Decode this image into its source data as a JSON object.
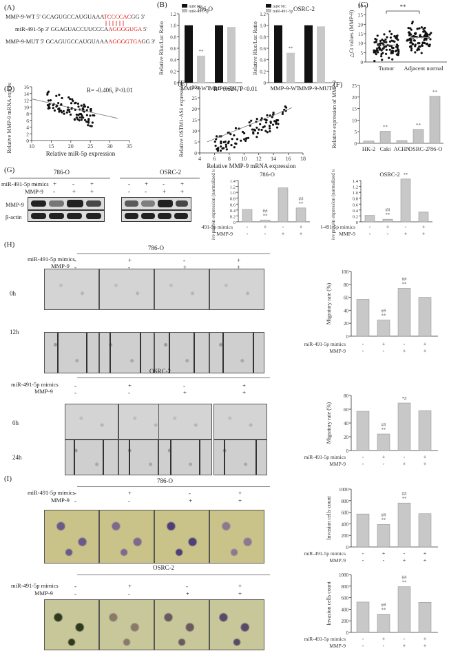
{
  "panels": {
    "A": "(A)",
    "B": "(B)",
    "C": "(C)",
    "D": "(D)",
    "E": "(E)",
    "F": "(F)",
    "G": "(G)",
    "H": "(H)",
    "I": "(I)"
  },
  "A": {
    "wt_label": "MMP-9-WT 5' GCAGUGCCAUGUAAA",
    "wt_red": "TCCCCAC",
    "wt_end": "GG 3'",
    "mir_label": "miR-491-5p 3' GGAGUACCUUCCCA",
    "mir_red": "AGGGGUGA",
    "mir_end": " 5'",
    "mut_label": "MMP-9-MUT 5' GCAGUGCCAUGUAAA",
    "mut_red": "AGGGGTGA",
    "mut_end": "GG 3'"
  },
  "B": {
    "ylabel": "Relative Rluc/Luc Ratio",
    "legend": [
      "miR NC",
      "miR-491-5p"
    ],
    "charts": [
      {
        "title": "786-O",
        "categories": [
          "MMP-9-WT",
          "MMP-9-MUT"
        ],
        "nc": [
          1.0,
          1.0
        ],
        "mir": [
          0.47,
          0.97
        ],
        "sig": [
          "**",
          ""
        ]
      },
      {
        "title": "OSRC-2",
        "categories": [
          "MMP-9-WT",
          "MMP-9-MUT"
        ],
        "nc": [
          1.0,
          1.0
        ],
        "mir": [
          0.52,
          0.98
        ],
        "sig": [
          "**",
          ""
        ]
      }
    ],
    "ticks": [
      "0",
      "0.2",
      "0.4",
      "0.6",
      "0.8",
      "1.0",
      "1.2"
    ]
  },
  "C": {
    "ylabel": "△Ct values (MMP-9)",
    "categories": [
      "Tumor",
      "Adjacent normal"
    ],
    "sig": "**",
    "ticks": [
      "0",
      "5",
      "10",
      "15",
      "20",
      "25",
      "30"
    ]
  },
  "D": {
    "xlabel": "Relative miR-5p expression",
    "ylabel": "Relative MMP-9 mRNA expression",
    "stat": "R= -0.406, P<0.01",
    "xticks": [
      "10",
      "15",
      "20",
      "25",
      "30",
      "35"
    ],
    "yticks": [
      "0",
      "2",
      "4",
      "6",
      "8",
      "10",
      "12",
      "14",
      "16"
    ]
  },
  "E": {
    "xlabel": "Relative MMP-9 mRNA expression",
    "ylabel": "Relative OSTM1-AS1 expression",
    "stat": "R= 0.624, P<0.01",
    "xticks": [
      "4",
      "6",
      "8",
      "10",
      "12",
      "14",
      "16",
      "18"
    ],
    "yticks": [
      "0",
      "5",
      "10",
      "15",
      "20",
      "25",
      "30"
    ]
  },
  "F": {
    "ylabel": "Relative expression of MMP-9",
    "categories": [
      "HK-2",
      "Caki",
      "ACHN",
      "OSRC-2",
      "786-O"
    ],
    "values": [
      1,
      5.2,
      1.2,
      6,
      20.3
    ],
    "sig": [
      "",
      "**",
      "",
      "**",
      "**"
    ],
    "ticks": [
      "0",
      "5",
      "10",
      "15",
      "20",
      "25"
    ]
  },
  "G": {
    "cell_a": "786-O",
    "cell_b": "OSRC-2",
    "row1": "miR-491-5p mimics",
    "row2": "MMP-9",
    "blot1": "MMP-9",
    "blot2": "β-actin",
    "mimic_signs": [
      "-",
      "+",
      "-",
      "+"
    ],
    "mmp_signs": [
      "-",
      "-",
      "+",
      "+"
    ],
    "ylabel": "Relative protein expression (normalized to β-actin)",
    "chart_a": {
      "title": "786-O",
      "values": [
        0.42,
        0.06,
        1.15,
        0.47
      ],
      "sig": [
        "",
        "##\n**",
        "",
        "##\n**"
      ],
      "ticks": [
        "0",
        "0.2",
        "0.4",
        "0.6",
        "0.8",
        "1.0",
        "1.2",
        "1.4"
      ]
    },
    "chart_b": {
      "title": "OSRC-2",
      "values": [
        0.22,
        0.09,
        1.45,
        0.33
      ],
      "sig": [
        "",
        "##\n**",
        "**",
        ""
      ],
      "ticks": [
        "0",
        "0.2",
        "0.4",
        "0.6",
        "0.8",
        "1.0",
        "1.2",
        "1.4"
      ]
    }
  },
  "H": {
    "cell_a": "786-O",
    "cell_b": "OSRC-2",
    "row1": "miR-491-5p mimics",
    "row2": "MMP-9",
    "times_a": [
      "0h",
      "12h"
    ],
    "times_b": [
      "0h",
      "24h"
    ],
    "ylabel": "Migratory rate (%)",
    "chart_a": {
      "values": [
        57,
        25,
        74,
        60
      ],
      "sig": [
        "",
        "##\n**",
        "##\n**",
        ""
      ],
      "ticks": [
        "0",
        "20",
        "40",
        "60",
        "80",
        "100"
      ]
    },
    "chart_b": {
      "values": [
        57,
        24,
        69,
        58
      ],
      "sig": [
        "",
        "##\n**",
        "*#",
        ""
      ],
      "ticks": [
        "0",
        "20",
        "40",
        "60",
        "80"
      ]
    }
  },
  "I": {
    "cell_a": "786-O",
    "cell_b": "OSRC-2",
    "row1": "miR-491-5p mimics",
    "row2": "MMP-9",
    "ylabel": "Invasion cells count",
    "chart_a": {
      "values": [
        570,
        390,
        760,
        575
      ],
      "sig": [
        "",
        "##\n**",
        "##\n**",
        ""
      ],
      "ticks": [
        "0",
        "200",
        "400",
        "600",
        "800",
        "1000"
      ]
    },
    "chart_b": {
      "values": [
        525,
        315,
        790,
        520
      ],
      "sig": [
        "",
        "##\n**",
        "##\n**",
        ""
      ],
      "ticks": [
        "0",
        "200",
        "400",
        "600",
        "800",
        "1000"
      ]
    }
  },
  "chart_data": [
    {
      "type": "bar",
      "title": "786-O",
      "categories": [
        "MMP-9-WT",
        "MMP-9-MUT"
      ],
      "series": [
        {
          "name": "miR NC",
          "values": [
            1.0,
            1.0
          ]
        },
        {
          "name": "miR-491-5p",
          "values": [
            0.47,
            0.97
          ]
        }
      ],
      "ylabel": "Relative Rluc/Luc Ratio",
      "ylim": [
        0,
        1.2
      ]
    },
    {
      "type": "bar",
      "title": "OSRC-2",
      "categories": [
        "MMP-9-WT",
        "MMP-9-MUT"
      ],
      "series": [
        {
          "name": "miR NC",
          "values": [
            1.0,
            1.0
          ]
        },
        {
          "name": "miR-491-5p",
          "values": [
            0.52,
            0.98
          ]
        }
      ],
      "ylabel": "Relative Rluc/Luc Ratio",
      "ylim": [
        0,
        1.2
      ]
    },
    {
      "type": "scatter",
      "categories": [
        "Tumor",
        "Adjacent normal"
      ],
      "ylabel": "△Ct values (MMP-9)",
      "ylim": [
        0,
        30
      ]
    },
    {
      "type": "scatter",
      "xlabel": "Relative miR-5p expression",
      "ylabel": "Relative MMP-9 mRNA expression",
      "xlim": [
        10,
        35
      ],
      "ylim": [
        0,
        16
      ]
    },
    {
      "type": "scatter",
      "xlabel": "Relative MMP-9 mRNA expression",
      "ylabel": "Relative OSTM1-AS1 expression",
      "xlim": [
        4,
        18
      ],
      "ylim": [
        0,
        30
      ]
    },
    {
      "type": "bar",
      "categories": [
        "HK-2",
        "Caki",
        "ACHN",
        "OSRC-2",
        "786-O"
      ],
      "values": [
        1,
        5.2,
        1.2,
        6,
        20.3
      ],
      "ylabel": "Relative expression of MMP-9",
      "ylim": [
        0,
        25
      ]
    },
    {
      "type": "bar",
      "title": "786-O",
      "values": [
        0.42,
        0.06,
        1.15,
        0.47
      ],
      "ylim": [
        0,
        1.4
      ]
    },
    {
      "type": "bar",
      "title": "OSRC-2",
      "values": [
        0.22,
        0.09,
        1.45,
        0.33
      ],
      "ylim": [
        0,
        1.4
      ]
    },
    {
      "type": "bar",
      "values": [
        57,
        25,
        74,
        60
      ],
      "ylabel": "Migratory rate (%)",
      "ylim": [
        0,
        100
      ]
    },
    {
      "type": "bar",
      "values": [
        57,
        24,
        69,
        58
      ],
      "ylabel": "Migratory rate (%)",
      "ylim": [
        0,
        80
      ]
    },
    {
      "type": "bar",
      "values": [
        570,
        390,
        760,
        575
      ],
      "ylabel": "Invasion cells count",
      "ylim": [
        0,
        1000
      ]
    },
    {
      "type": "bar",
      "values": [
        525,
        315,
        790,
        520
      ],
      "ylabel": "Invasion cells count",
      "ylim": [
        0,
        1000
      ]
    }
  ]
}
